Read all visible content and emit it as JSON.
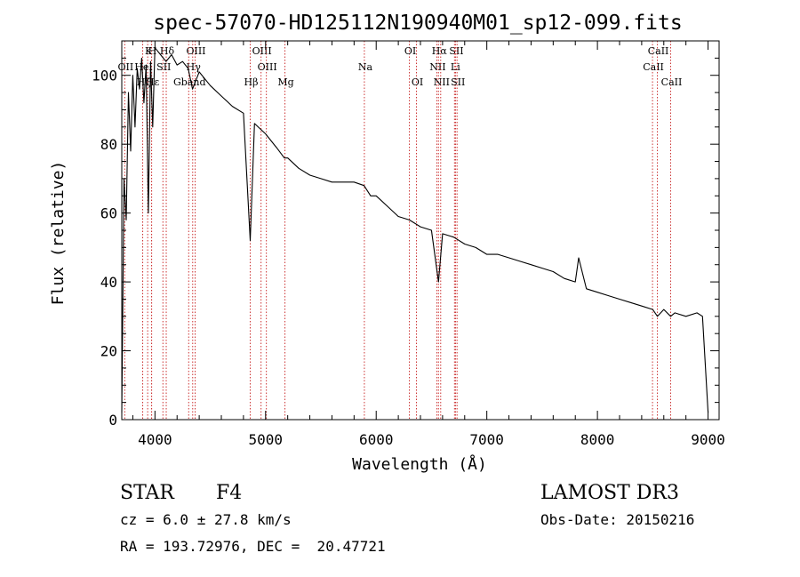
{
  "chart_data": {
    "type": "line",
    "title": "spec-57070-HD125112N190940M01_sp12-099.fits",
    "xlabel": "Wavelength (Å)",
    "ylabel": "Flux (relative)",
    "xlim": [
      3700,
      9100
    ],
    "ylim": [
      0,
      110
    ],
    "xticks": [
      4000,
      5000,
      6000,
      7000,
      8000,
      9000
    ],
    "yticks": [
      0,
      20,
      40,
      60,
      80,
      100
    ],
    "grid": false,
    "series": [
      {
        "name": "flux",
        "x": [
          3700,
          3720,
          3740,
          3760,
          3780,
          3800,
          3820,
          3840,
          3860,
          3880,
          3900,
          3920,
          3940,
          3960,
          3980,
          4000,
          4050,
          4100,
          4150,
          4200,
          4250,
          4300,
          4340,
          4400,
          4500,
          4600,
          4700,
          4800,
          4861,
          4900,
          5000,
          5100,
          5170,
          5200,
          5300,
          5400,
          5500,
          5600,
          5700,
          5800,
          5890,
          5950,
          6000,
          6100,
          6200,
          6300,
          6400,
          6500,
          6563,
          6600,
          6700,
          6800,
          6900,
          7000,
          7100,
          7200,
          7300,
          7400,
          7500,
          7600,
          7700,
          7800,
          7830,
          7900,
          8000,
          8100,
          8200,
          8300,
          8400,
          8500,
          8542,
          8600,
          8662,
          8700,
          8800,
          8900,
          8950,
          9000
        ],
        "y": [
          2,
          70,
          58,
          95,
          78,
          100,
          85,
          102,
          96,
          105,
          92,
          103,
          60,
          104,
          85,
          108,
          106,
          104,
          106,
          103,
          104,
          102,
          96,
          101,
          97,
          94,
          91,
          89,
          52,
          86,
          83,
          79,
          76,
          76,
          73,
          71,
          70,
          69,
          69,
          69,
          68,
          65,
          65,
          62,
          59,
          58,
          56,
          55,
          40,
          54,
          53,
          51,
          50,
          48,
          48,
          47,
          46,
          45,
          44,
          43,
          41,
          40,
          47,
          38,
          37,
          36,
          35,
          34,
          33,
          32,
          30,
          32,
          30,
          31,
          30,
          31,
          30,
          2
        ]
      }
    ],
    "lines": [
      {
        "label": "Hδ",
        "wave": 4102,
        "row": 1
      },
      {
        "label": "OII",
        "wave": 3727,
        "row": 2
      },
      {
        "label": "Hε",
        "wave": 3970,
        "row": 3
      },
      {
        "label": "K",
        "wave": 3934,
        "row": 1
      },
      {
        "label": "H",
        "wave": 3969,
        "row": 1
      },
      {
        "label": "HeI",
        "wave": 3889,
        "row": 2
      },
      {
        "label": "SII",
        "wave": 4072,
        "row": 2
      },
      {
        "label": "Hζ",
        "wave": 3889,
        "row": 3
      },
      {
        "label": "Hγ",
        "wave": 4341,
        "row": 2
      },
      {
        "label": "OIII",
        "wave": 4363,
        "row": 1
      },
      {
        "label": "Gband",
        "wave": 4305,
        "row": 3
      },
      {
        "label": "Hβ",
        "wave": 4861,
        "row": 3
      },
      {
        "label": "OIII",
        "wave": 4959,
        "row": 1
      },
      {
        "label": "OIII",
        "wave": 5007,
        "row": 2
      },
      {
        "label": "Mg",
        "wave": 5175,
        "row": 3
      },
      {
        "label": "Na",
        "wave": 5893,
        "row": 2
      },
      {
        "label": "OI",
        "wave": 6300,
        "row": 1
      },
      {
        "label": "OI",
        "wave": 6364,
        "row": 3
      },
      {
        "label": "Hα",
        "wave": 6563,
        "row": 1
      },
      {
        "label": "NII",
        "wave": 6548,
        "row": 2
      },
      {
        "label": "NII",
        "wave": 6583,
        "row": 3
      },
      {
        "label": "SII",
        "wave": 6717,
        "row": 1
      },
      {
        "label": "Li",
        "wave": 6708,
        "row": 2
      },
      {
        "label": "SII",
        "wave": 6731,
        "row": 3
      },
      {
        "label": "CaII",
        "wave": 8498,
        "row": 2
      },
      {
        "label": "CaII",
        "wave": 8542,
        "row": 1
      },
      {
        "label": "CaII",
        "wave": 8662,
        "row": 3
      }
    ]
  },
  "info": {
    "object_class": "STAR",
    "subclass": "F4",
    "survey": "LAMOST DR3",
    "redshift": "cz = 6.0 ± 27.8 km/s",
    "obs_date": "Obs-Date: 20150216",
    "coords": "RA = 193.72976, DEC =  20.47721"
  },
  "colors": {
    "line_marker": "#cc3333",
    "spectrum": "#000000",
    "axes": "#000000"
  }
}
